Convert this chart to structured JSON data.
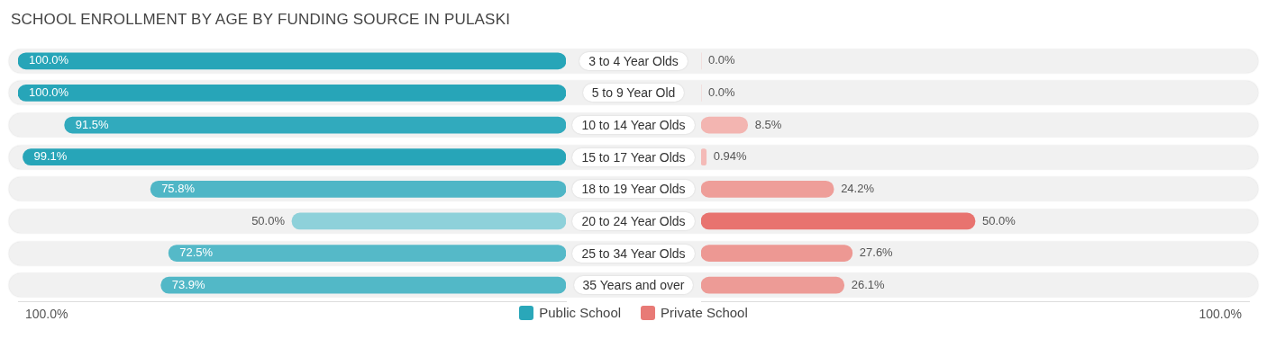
{
  "chart_data": [
    {
      "type": "bar",
      "orientation": "horizontal",
      "title": "SCHOOL ENROLLMENT BY AGE BY FUNDING SOURCE IN PULASKI",
      "categories": [
        "3 to 4 Year Olds",
        "5 to 9 Year Old",
        "10 to 14 Year Olds",
        "15 to 17 Year Olds",
        "18 to 19 Year Olds",
        "20 to 24 Year Olds",
        "25 to 34 Year Olds",
        "35 Years and over"
      ],
      "series": [
        {
          "name": "Public School",
          "color": "#2aa7b9",
          "colors": [
            "#27a5b8",
            "#27a5b8",
            "#31aabd",
            "#27a5b8",
            "#4fb6c6",
            "#8ed1da",
            "#55b9c8",
            "#52b8c7"
          ],
          "values": [
            100,
            100,
            91.5,
            99.1,
            75.8,
            50,
            72.5,
            73.9
          ],
          "value_labels": [
            "100.0%",
            "100.0%",
            "91.5%",
            "99.1%",
            "75.8%",
            "50.0%",
            "72.5%",
            "73.9%"
          ]
        }
      ],
      "xlim": [
        100,
        0
      ],
      "annotations": [
        "100.0%"
      ],
      "data_labels": true,
      "legend": "bottom"
    },
    {
      "type": "bar",
      "orientation": "horizontal",
      "categories": [
        null,
        null,
        null,
        null,
        null,
        null,
        null,
        null
      ],
      "series": [
        {
          "name": "Private School",
          "color": "#e87a76",
          "colors": [
            "#f5bcb9",
            "#f5bcb9",
            "#f3b5b1",
            "#f4bab7",
            "#ee9e99",
            "#e8736f",
            "#ed9893",
            "#ed9b96"
          ],
          "values": [
            0,
            0,
            8.5,
            0.94,
            24.2,
            50,
            27.6,
            26.1
          ],
          "value_labels": [
            "0.0%",
            "0.0%",
            "8.5%",
            "0.94%",
            "24.2%",
            "50.0%",
            "27.6%",
            "26.1%"
          ]
        }
      ],
      "xlim": [
        0,
        100
      ],
      "annotations": [
        "100.0%"
      ],
      "data_labels": true,
      "legend": "bottom"
    }
  ]
}
